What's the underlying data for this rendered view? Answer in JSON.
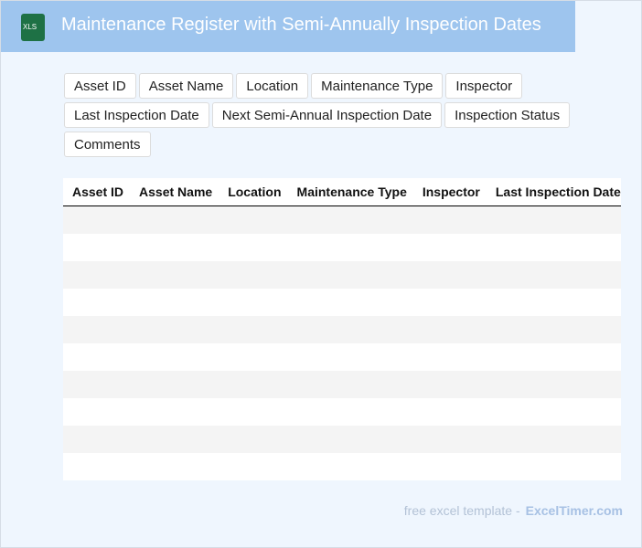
{
  "header": {
    "icon_label": "XLS",
    "title": "Maintenance Register with Semi-Annually Inspection Dates"
  },
  "tags": [
    "Asset ID",
    "Asset Name",
    "Location",
    "Maintenance Type",
    "Inspector",
    "Last Inspection Date",
    "Next Semi-Annual Inspection Date",
    "Inspection Status",
    "Comments"
  ],
  "table": {
    "columns": [
      "Asset ID",
      "Asset Name",
      "Location",
      "Maintenance Type",
      "Inspector",
      "Last Inspection Date"
    ]
  },
  "footer": {
    "text": "free excel template -",
    "brand": "ExcelTimer.com"
  }
}
